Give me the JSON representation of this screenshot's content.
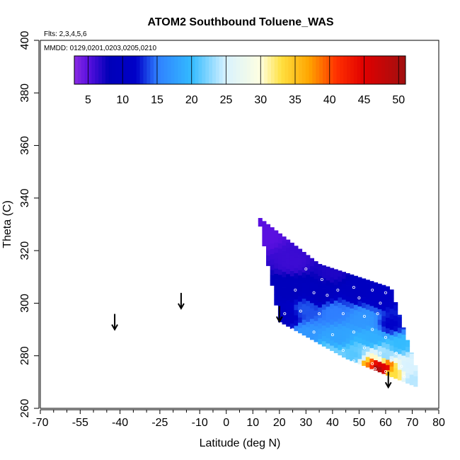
{
  "chart_data": {
    "type": "heatmap",
    "title": "ATOM2 Southbound Toluene_WAS",
    "flights_label": "Flts: 2,3,4,5,6",
    "dates_label": "MMDD: 0129,0201,0203,0205,0210",
    "xlabel": "Latitude (deg N)",
    "ylabel": "Theta (C)",
    "xlim": [
      -70,
      80
    ],
    "ylim": [
      260,
      400
    ],
    "x_ticks": [
      -70,
      -55,
      -40,
      -25,
      -10,
      0,
      10,
      20,
      30,
      40,
      50,
      60,
      70,
      80
    ],
    "x_tick_labels": [
      "-70",
      "-55",
      "-40",
      "-25",
      "-10",
      "0",
      "10",
      "20",
      "30",
      "40",
      "50",
      "60",
      "70",
      "80"
    ],
    "x_minor_ticks": [
      -65,
      -60,
      -50,
      -45,
      -35,
      -30,
      -20,
      -15,
      -5,
      5,
      15,
      25,
      35,
      45,
      55,
      65,
      75
    ],
    "y_ticks": [
      260,
      280,
      300,
      320,
      340,
      360,
      380,
      400
    ],
    "y_tick_labels": [
      "260",
      "280",
      "300",
      "320",
      "340",
      "360",
      "380",
      "400"
    ],
    "colorbar": {
      "min": 3,
      "max": 51,
      "ticks": [
        5,
        10,
        15,
        20,
        25,
        30,
        35,
        40,
        45,
        50
      ],
      "tick_labels": [
        "5",
        "10",
        "15",
        "20",
        "25",
        "30",
        "35",
        "40",
        "45",
        "50"
      ],
      "stops": [
        [
          3,
          "#8a2be2"
        ],
        [
          5,
          "#5a10e0"
        ],
        [
          8,
          "#0000b8"
        ],
        [
          12,
          "#0000c8"
        ],
        [
          15,
          "#2f7fff"
        ],
        [
          20,
          "#33bbff"
        ],
        [
          25,
          "#d8f2ff"
        ],
        [
          30,
          "#ffffe0"
        ],
        [
          33,
          "#ffe040"
        ],
        [
          37,
          "#ffa500"
        ],
        [
          41,
          "#ff3000"
        ],
        [
          45,
          "#e00000"
        ],
        [
          51,
          "#a01010"
        ]
      ]
    },
    "field_region": {
      "lat_range": [
        12,
        72
      ],
      "theta_top_at_lat": [
        [
          12,
          333
        ],
        [
          35,
          315
        ],
        [
          62,
          306
        ],
        [
          72,
          274
        ]
      ],
      "theta_bottom_at_lat": [
        [
          12,
          333
        ],
        [
          20,
          293
        ],
        [
          45,
          279
        ],
        [
          72,
          268
        ]
      ]
    },
    "field_samples": [
      {
        "lat": 14,
        "theta": 326,
        "value": 5
      },
      {
        "lat": 25,
        "theta": 316,
        "value": 6
      },
      {
        "lat": 40,
        "theta": 312,
        "value": 7
      },
      {
        "lat": 24,
        "theta": 305,
        "value": 9
      },
      {
        "lat": 35,
        "theta": 303,
        "value": 9
      },
      {
        "lat": 50,
        "theta": 305,
        "value": 10
      },
      {
        "lat": 58,
        "theta": 302,
        "value": 11
      },
      {
        "lat": 22,
        "theta": 295,
        "value": 10
      },
      {
        "lat": 30,
        "theta": 298,
        "value": 14
      },
      {
        "lat": 40,
        "theta": 297,
        "value": 15
      },
      {
        "lat": 52,
        "theta": 294,
        "value": 17
      },
      {
        "lat": 62,
        "theta": 292,
        "value": 12
      },
      {
        "lat": 30,
        "theta": 288,
        "value": 17
      },
      {
        "lat": 42,
        "theta": 287,
        "value": 18
      },
      {
        "lat": 55,
        "theta": 287,
        "value": 19
      },
      {
        "lat": 65,
        "theta": 284,
        "value": 20
      },
      {
        "lat": 38,
        "theta": 281,
        "value": 22
      },
      {
        "lat": 48,
        "theta": 280,
        "value": 21
      },
      {
        "lat": 60,
        "theta": 280,
        "value": 23
      },
      {
        "lat": 68,
        "theta": 276,
        "value": 25
      },
      {
        "lat": 46,
        "theta": 276,
        "value": 24
      },
      {
        "lat": 53,
        "theta": 275,
        "value": 38
      },
      {
        "lat": 57,
        "theta": 275,
        "value": 50
      },
      {
        "lat": 59,
        "theta": 276,
        "value": 45
      },
      {
        "lat": 63,
        "theta": 273,
        "value": 33
      },
      {
        "lat": 70,
        "theta": 271,
        "value": 24
      }
    ],
    "sample_points": [
      [
        30,
        313
      ],
      [
        36,
        309
      ],
      [
        42,
        305
      ],
      [
        48,
        306
      ],
      [
        55,
        305
      ],
      [
        60,
        304
      ],
      [
        26,
        305
      ],
      [
        33,
        304
      ],
      [
        38,
        303
      ],
      [
        50,
        302
      ],
      [
        58,
        300
      ],
      [
        22,
        296
      ],
      [
        28,
        297
      ],
      [
        35,
        296
      ],
      [
        44,
        296
      ],
      [
        52,
        295
      ],
      [
        57,
        296
      ],
      [
        25,
        290
      ],
      [
        33,
        289
      ],
      [
        40,
        288
      ],
      [
        48,
        289
      ],
      [
        55,
        290
      ],
      [
        60,
        287
      ],
      [
        35,
        283
      ],
      [
        44,
        282
      ],
      [
        52,
        283
      ],
      [
        58,
        281
      ],
      [
        64,
        281
      ],
      [
        40,
        279
      ],
      [
        48,
        278
      ],
      [
        55,
        277
      ],
      [
        62,
        278
      ],
      [
        66,
        276
      ],
      [
        50,
        275
      ],
      [
        56,
        275
      ],
      [
        60,
        274
      ],
      [
        67,
        272
      ]
    ],
    "arrows": [
      {
        "lat": -42,
        "theta": 290
      },
      {
        "lat": -17,
        "theta": 298
      },
      {
        "lat": 20,
        "theta": 293
      },
      {
        "lat": 61,
        "theta": 268
      }
    ]
  }
}
